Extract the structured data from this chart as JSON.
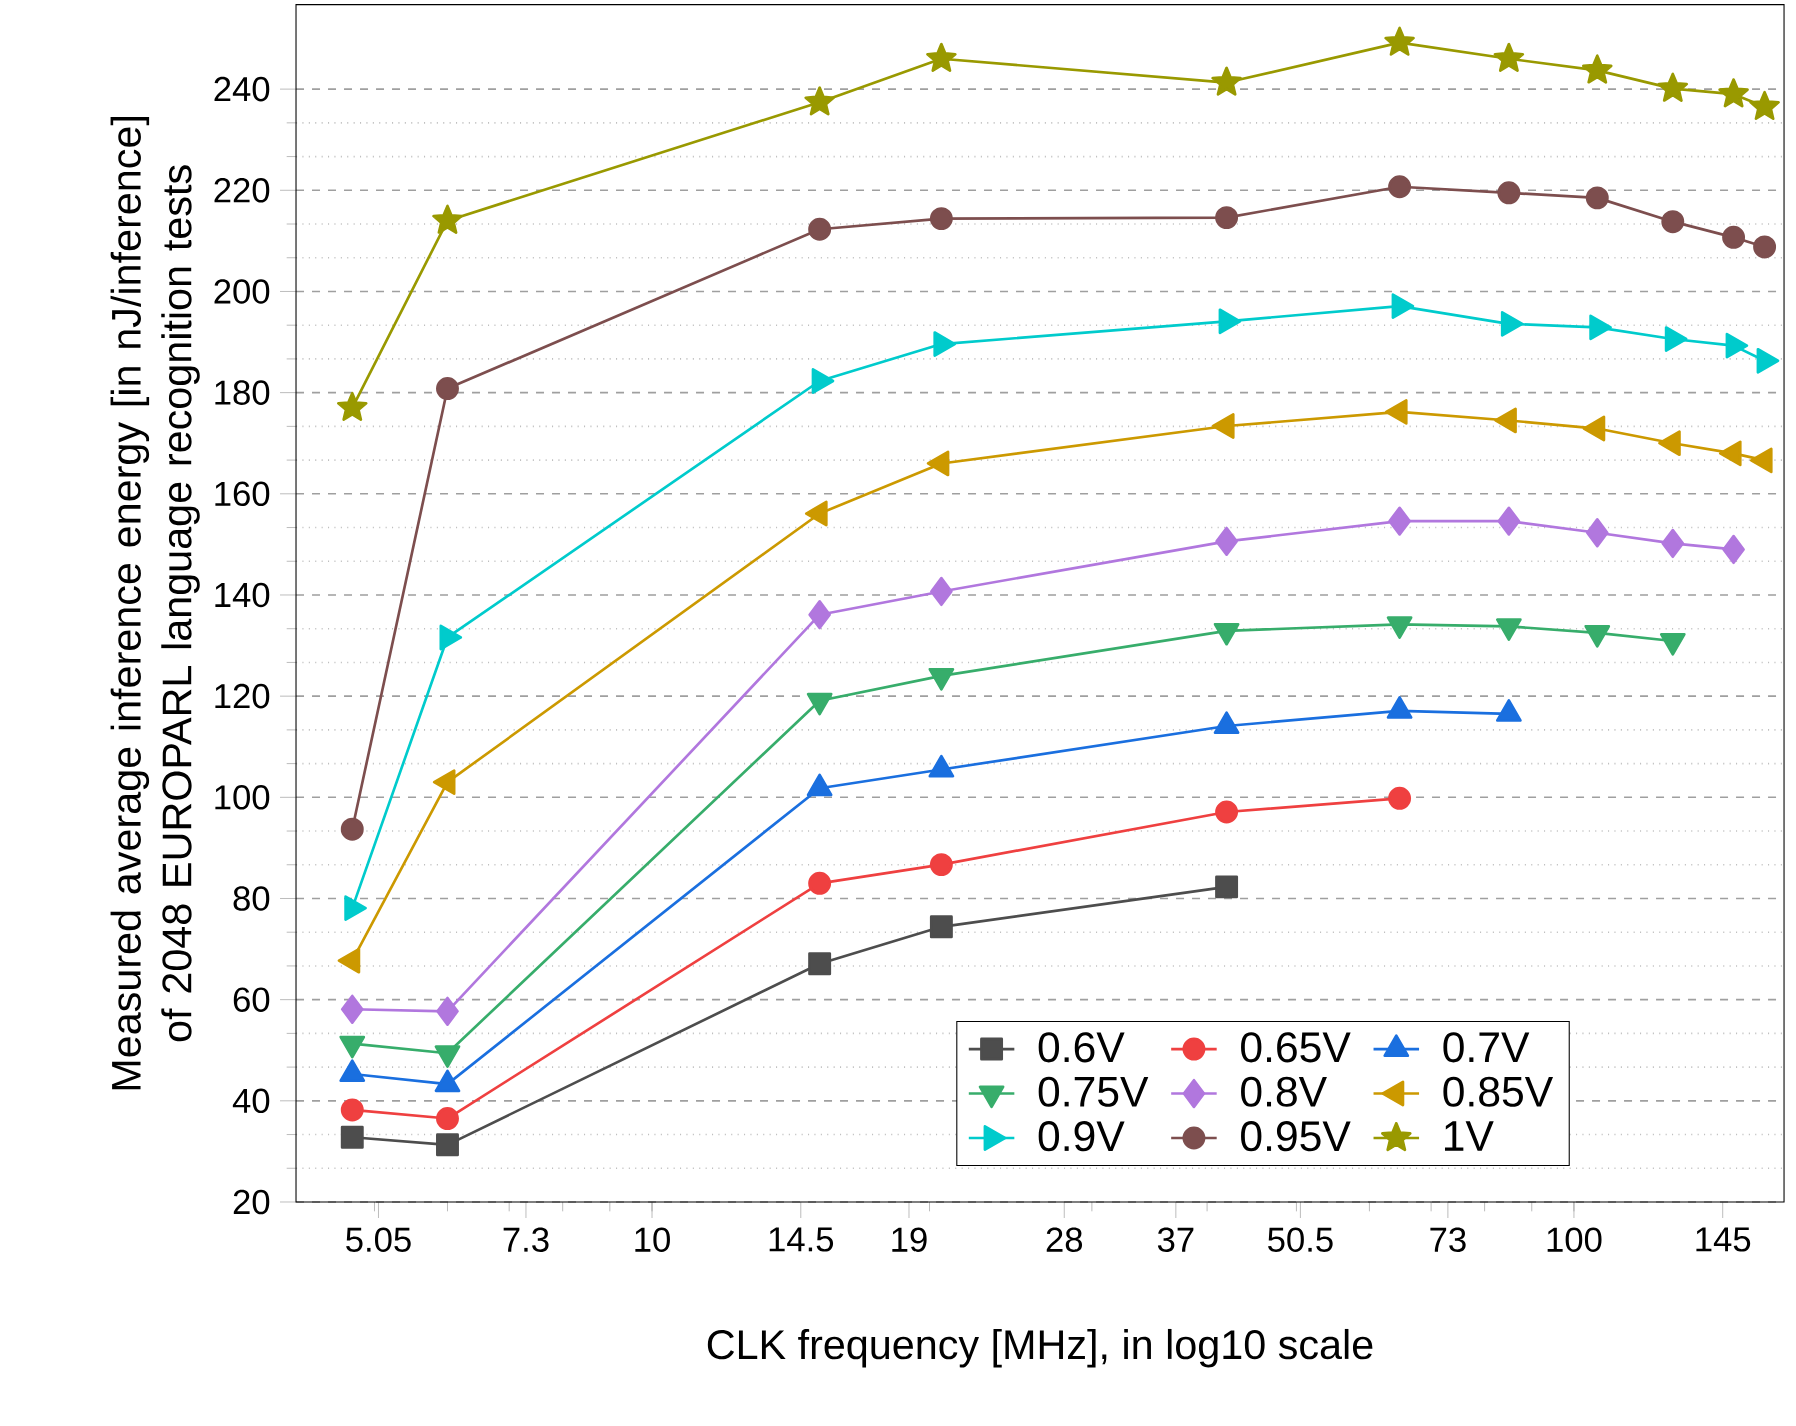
{
  "chart_data": {
    "type": "line",
    "xlabel": "CLK frequency [MHz], in log10 scale",
    "ylabel": "Measured average inference energy [in nJ/inference] of 2048 EUROPARL language recognition tests",
    "log": "x",
    "grid": "y",
    "legend": "bottom right",
    "line_style": "solid",
    "xlim": [
      4.11,
      169
    ],
    "xticks": [
      5.05,
      7.3,
      10,
      14.5,
      19,
      28,
      37,
      50.5,
      73,
      100,
      145
    ],
    "ylim": [
      20,
      256.7
    ],
    "yticks": [
      20,
      40,
      60,
      80,
      100,
      120,
      140,
      160,
      180,
      200,
      220,
      240
    ],
    "x": [
      4.73,
      6.0,
      15.2,
      20.6,
      42,
      64.7,
      85,
      106,
      128,
      149,
      161
    ],
    "series": [
      {
        "name": "0.6V",
        "color": "#4d4d4d",
        "marker": "square",
        "values": [
          32.8,
          31.3,
          67.1,
          74.4,
          82.3,
          null,
          null,
          null,
          null,
          null,
          null
        ]
      },
      {
        "name": "0.65V",
        "color": "#ef4040",
        "marker": "circle",
        "values": [
          38.2,
          36.5,
          83,
          86.7,
          97.1,
          99.8,
          null,
          null,
          null,
          null,
          null
        ]
      },
      {
        "name": "0.7V",
        "color": "#1a6fdf",
        "marker": "triangle",
        "values": [
          45.3,
          43.3,
          101.8,
          105.5,
          114.1,
          117.1,
          116.5,
          null,
          null,
          null,
          null
        ]
      },
      {
        "name": "0.75V",
        "color": "#37ad6b",
        "marker": "triangle-down",
        "values": [
          51.3,
          49.4,
          119.1,
          124,
          132.9,
          134.2,
          133.8,
          132.5,
          130.9,
          null,
          null
        ]
      },
      {
        "name": "0.8V",
        "color": "#b177de",
        "marker": "diamond",
        "values": [
          58.1,
          57.7,
          136.1,
          140.7,
          150.6,
          154.6,
          154.6,
          152.3,
          150.2,
          149,
          null
        ]
      },
      {
        "name": "0.85V",
        "color": "#cc9900",
        "marker": "triangle-left",
        "values": [
          67.7,
          103,
          156.1,
          166,
          173.4,
          176.2,
          174.5,
          172.9,
          170,
          168,
          166.6
        ]
      },
      {
        "name": "0.9V",
        "color": "#00cbcc",
        "marker": "triangle-right",
        "values": [
          78.1,
          131.6,
          182.3,
          189.6,
          194.1,
          197.1,
          193.6,
          192.9,
          190.6,
          189.3,
          186.3
        ]
      },
      {
        "name": "0.95V",
        "color": "#7d4e4e",
        "marker": "circle",
        "values": [
          93.7,
          180.8,
          212.3,
          214.4,
          214.6,
          220.7,
          219.5,
          218.5,
          213.8,
          210.7,
          208.8
        ]
      },
      {
        "name": "1V",
        "color": "#999900",
        "marker": "star",
        "values": [
          177,
          214,
          237.4,
          246,
          241.3,
          249.2,
          246,
          243.7,
          240.1,
          239,
          236.5
        ]
      }
    ]
  }
}
